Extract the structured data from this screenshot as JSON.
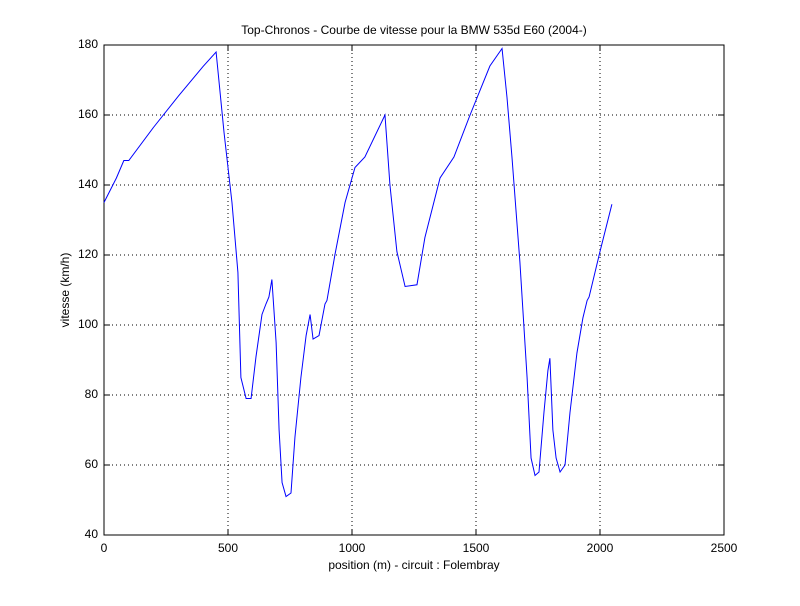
{
  "chart_data": {
    "type": "line",
    "title": "Top-Chronos - Courbe de vitesse pour la BMW 535d E60 (2004-)",
    "x_label": "position (m) - circuit : Folembray",
    "y_label": "vitesse (km/h)",
    "x": [
      0,
      50,
      80,
      100,
      200,
      300,
      400,
      452,
      484,
      516,
      540,
      552,
      573,
      593,
      613,
      637,
      653,
      665,
      677,
      694,
      706,
      718,
      734,
      754,
      770,
      794,
      815,
      831,
      843,
      867,
      891,
      899,
      931,
      972,
      1012,
      1052,
      1133,
      1153,
      1181,
      1214,
      1262,
      1294,
      1355,
      1411,
      1476,
      1556,
      1605,
      1625,
      1645,
      1677,
      1706,
      1722,
      1738,
      1754,
      1774,
      1790,
      1798,
      1810,
      1823,
      1839,
      1859,
      1879,
      1907,
      1931,
      1948,
      1956,
      2000,
      2048
    ],
    "series": [
      {
        "color": "#0000ff",
        "values": [
          135,
          142,
          147,
          147,
          156.5,
          165.4,
          173.9,
          178,
          155,
          135,
          115,
          85,
          79,
          79,
          91,
          103,
          106,
          108,
          113,
          95,
          70,
          55,
          51,
          52,
          68,
          85,
          97,
          103,
          96,
          97,
          106,
          107,
          120,
          135,
          145,
          148,
          160,
          140,
          121,
          111,
          111.5,
          125,
          142,
          148,
          160,
          174,
          179,
          165,
          148,
          118,
          85,
          62,
          57,
          58,
          75,
          87,
          90.5,
          70,
          62,
          58,
          60,
          75,
          92,
          102,
          107,
          108,
          121,
          134.5
        ]
      }
    ],
    "xlim": [
      0,
      2500
    ],
    "xticks": [
      0,
      500,
      1000,
      1500,
      2000,
      2500
    ],
    "ylim": [
      40,
      180
    ],
    "yticks": [
      40,
      60,
      80,
      100,
      120,
      140,
      160,
      180
    ],
    "grid": true
  }
}
